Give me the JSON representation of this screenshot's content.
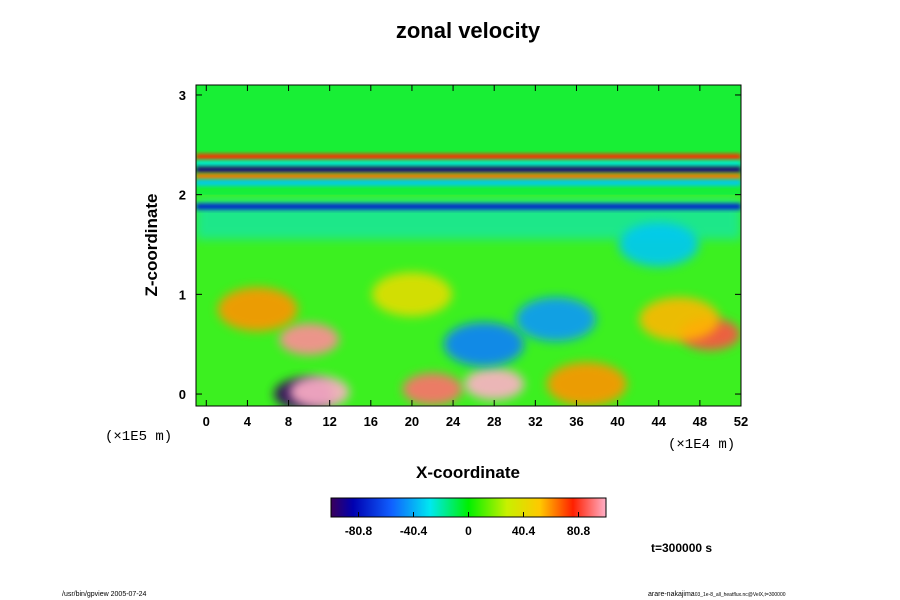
{
  "chart_data": {
    "type": "heatmap",
    "title": "zonal velocity",
    "xlabel": "X-coordinate",
    "ylabel": "Z-coordinate",
    "x_scale_note": "(×1E4 m)",
    "y_scale_note": "(×1E5 m)",
    "x_ticks": [
      "0",
      "4",
      "8",
      "12",
      "16",
      "20",
      "24",
      "28",
      "32",
      "36",
      "40",
      "44",
      "48",
      "52"
    ],
    "y_ticks": [
      "0",
      "1",
      "2",
      "3"
    ],
    "xlim": [
      -1,
      52
    ],
    "ylim": [
      -0.12,
      3.1
    ],
    "colorbar": {
      "ticks": [
        "-80.8",
        "-40.4",
        "0",
        "40.4",
        "80.8"
      ],
      "tick_values": [
        -80.8,
        -40.4,
        0,
        40.4,
        80.8
      ],
      "range": [
        -101,
        101
      ]
    },
    "time_label": "t=300000 s",
    "bands": [
      {
        "z": 2.38,
        "value": 75
      },
      {
        "z": 2.31,
        "value": -25
      },
      {
        "z": 2.25,
        "value": -95
      },
      {
        "z": 2.18,
        "value": 65
      },
      {
        "z": 2.12,
        "value": -35
      },
      {
        "z": 1.88,
        "value": -75
      }
    ],
    "features": [
      {
        "x": 10,
        "z": 0.55,
        "value": 95
      },
      {
        "x": 5,
        "z": 0.85,
        "value": 60
      },
      {
        "x": 9.5,
        "z": 0.0,
        "value": -100
      },
      {
        "x": 11,
        "z": 0.02,
        "value": 105
      },
      {
        "x": 22,
        "z": 0.05,
        "value": 90
      },
      {
        "x": 28,
        "z": 0.1,
        "value": 105
      },
      {
        "x": 37,
        "z": 0.1,
        "value": 60
      },
      {
        "x": 49,
        "z": 0.6,
        "value": 85
      },
      {
        "x": 46,
        "z": 0.75,
        "value": 55
      },
      {
        "x": 27,
        "z": 0.5,
        "value": -50
      },
      {
        "x": 34,
        "z": 0.75,
        "value": -45
      },
      {
        "x": 20,
        "z": 1.0,
        "value": 40
      },
      {
        "x": 44,
        "z": 1.5,
        "value": -35
      }
    ]
  },
  "footer": {
    "left": "/usr/bin/gpview 2005-07-24",
    "right_main": "arare-nakajima",
    "right_sub": "03_1e-8_all_heatflux.nc@VelX,t=300000"
  }
}
